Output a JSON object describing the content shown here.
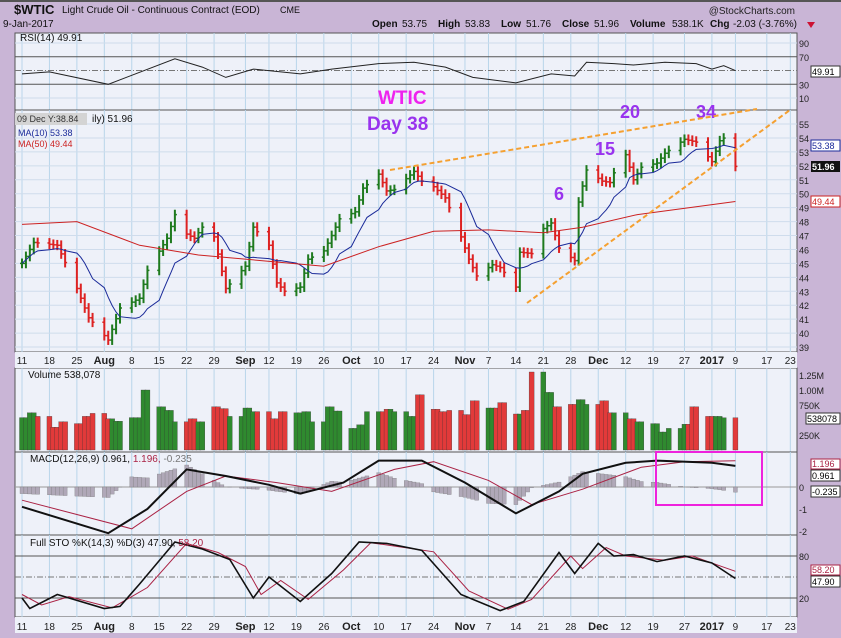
{
  "header": {
    "symbol": "$WTIC",
    "name": "Light Crude Oil - Continuous Contract (EOD)",
    "exchange": "CME",
    "date": "9-Jan-2017",
    "watermark": "@StockCharts.com",
    "open_label": "Open",
    "open": "53.75",
    "high_label": "High",
    "high": "53.83",
    "low_label": "Low",
    "low": "51.76",
    "close_label": "Close",
    "close": "51.96",
    "volume_label": "Volume",
    "volume": "538.1K",
    "chg_label": "Chg",
    "chg": "-2.03 (-3.76%)",
    "chg_icon": "down-triangle-icon"
  },
  "colors": {
    "up": "#1e7a1e",
    "down": "#dd2222",
    "ma10": "#1a2a99",
    "ma50": "#cc2222",
    "annot_magenta": "#ee22ee",
    "annot_purple": "#9933ee",
    "trendline": "#f5a030",
    "highlight_box": "#ee22dd"
  },
  "legends": {
    "rsi": "RSI(14) 49.91",
    "price_tooltip": "09 Dec Y:38.84",
    "price_suffix": "ily) 51.96",
    "ma10": "MA(10) 53.38",
    "ma50": "MA(50) 49.44",
    "volume": "Volume 538,078",
    "macd_a": "MACD(12,26,9) 0.961,",
    "macd_b": "1.196,",
    "macd_c": "-0.235",
    "sto_a": "Full STO %K(14,3) %D(3) 47.90,",
    "sto_b": "58.20"
  },
  "annotations": {
    "title": "WTIC",
    "day": "Day 38",
    "counts": [
      "6",
      "15",
      "20",
      "34"
    ]
  },
  "value_tags": {
    "rsi": "49.91",
    "ma10": "53.38",
    "close": "51.96",
    "ma50": "49.44",
    "volume": "538078",
    "macd": "1.196",
    "macd2": "0.961",
    "macd_hist": "-0.235",
    "sto_d": "58.20",
    "sto_k": "47.90"
  },
  "chart_data": {
    "type": "ohlc-bar with indicators",
    "x_ticks": [
      {
        "d": "2016-07-11",
        "t": "11"
      },
      {
        "d": "2016-07-18",
        "t": "18"
      },
      {
        "d": "2016-07-25",
        "t": "25"
      },
      {
        "d": "2016-08-01",
        "t": "Aug",
        "bold": true
      },
      {
        "d": "2016-08-08",
        "t": "8"
      },
      {
        "d": "2016-08-15",
        "t": "15"
      },
      {
        "d": "2016-08-22",
        "t": "22"
      },
      {
        "d": "2016-08-29",
        "t": "29"
      },
      {
        "d": "2016-09-06",
        "t": "Sep",
        "bold": true
      },
      {
        "d": "2016-09-12",
        "t": "12"
      },
      {
        "d": "2016-09-19",
        "t": "19"
      },
      {
        "d": "2016-09-26",
        "t": "26"
      },
      {
        "d": "2016-10-03",
        "t": "Oct",
        "bold": true
      },
      {
        "d": "2016-10-10",
        "t": "10"
      },
      {
        "d": "2016-10-17",
        "t": "17"
      },
      {
        "d": "2016-10-24",
        "t": "24"
      },
      {
        "d": "2016-11-01",
        "t": "Nov",
        "bold": true
      },
      {
        "d": "2016-11-07",
        "t": "7"
      },
      {
        "d": "2016-11-14",
        "t": "14"
      },
      {
        "d": "2016-11-21",
        "t": "21"
      },
      {
        "d": "2016-11-28",
        "t": "28"
      },
      {
        "d": "2016-12-05",
        "t": "Dec",
        "bold": true
      },
      {
        "d": "2016-12-12",
        "t": "12"
      },
      {
        "d": "2016-12-19",
        "t": "19"
      },
      {
        "d": "2016-12-27",
        "t": "27"
      },
      {
        "d": "2017-01-03",
        "t": "2017",
        "bold": true
      },
      {
        "d": "2017-01-09",
        "t": "9"
      },
      {
        "d": "2017-01-17",
        "t": "17"
      },
      {
        "d": "2017-01-23",
        "t": "23"
      }
    ],
    "price": {
      "ylim": [
        38.5,
        56.5
      ],
      "y_ticks": [
        39,
        40,
        41,
        42,
        43,
        44,
        45,
        46,
        47,
        48,
        49,
        50,
        51,
        52,
        53,
        54,
        55
      ],
      "closes": [
        [
          "2016-07-11",
          45.0
        ],
        [
          "2016-07-14",
          46.5
        ],
        [
          "2016-07-20",
          46.3
        ],
        [
          "2016-07-25",
          43.2
        ],
        [
          "2016-07-28",
          41.1
        ],
        [
          "2016-08-02",
          39.5
        ],
        [
          "2016-08-05",
          41.8
        ],
        [
          "2016-08-10",
          42.5
        ],
        [
          "2016-08-12",
          44.5
        ],
        [
          "2016-08-17",
          46.8
        ],
        [
          "2016-08-19",
          48.5
        ],
        [
          "2016-08-22",
          47.1
        ],
        [
          "2016-08-24",
          46.8
        ],
        [
          "2016-08-26",
          47.6
        ],
        [
          "2016-08-29",
          46.9
        ],
        [
          "2016-09-01",
          43.2
        ],
        [
          "2016-09-06",
          44.8
        ],
        [
          "2016-09-08",
          47.6
        ],
        [
          "2016-09-12",
          46.3
        ],
        [
          "2016-09-14",
          43.6
        ],
        [
          "2016-09-16",
          43.0
        ],
        [
          "2016-09-20",
          43.3
        ],
        [
          "2016-09-22",
          45.3
        ],
        [
          "2016-09-26",
          45.9
        ],
        [
          "2016-09-28",
          47.0
        ],
        [
          "2016-09-30",
          48.2
        ],
        [
          "2016-10-04",
          48.7
        ],
        [
          "2016-10-06",
          50.4
        ],
        [
          "2016-10-10",
          51.4
        ],
        [
          "2016-10-12",
          50.2
        ],
        [
          "2016-10-14",
          50.3
        ],
        [
          "2016-10-19",
          51.6
        ],
        [
          "2016-10-21",
          50.9
        ],
        [
          "2016-10-24",
          50.5
        ],
        [
          "2016-10-27",
          49.7
        ],
        [
          "2016-10-31",
          46.9
        ],
        [
          "2016-11-02",
          45.3
        ],
        [
          "2016-11-04",
          44.1
        ],
        [
          "2016-11-08",
          44.9
        ],
        [
          "2016-11-10",
          44.7
        ],
        [
          "2016-11-14",
          43.3
        ],
        [
          "2016-11-15",
          45.8
        ],
        [
          "2016-11-18",
          45.7
        ],
        [
          "2016-11-21",
          47.5
        ],
        [
          "2016-11-23",
          47.9
        ],
        [
          "2016-11-25",
          46.1
        ],
        [
          "2016-11-29",
          45.2
        ],
        [
          "2016-11-30",
          49.4
        ],
        [
          "2016-12-02",
          51.7
        ],
        [
          "2016-12-06",
          50.9
        ],
        [
          "2016-12-08",
          50.8
        ],
        [
          "2016-12-09",
          51.5
        ],
        [
          "2016-12-12",
          52.8
        ],
        [
          "2016-12-14",
          51.0
        ],
        [
          "2016-12-16",
          51.9
        ],
        [
          "2016-12-20",
          52.2
        ],
        [
          "2016-12-22",
          52.9
        ],
        [
          "2016-12-27",
          53.9
        ],
        [
          "2016-12-30",
          53.7
        ],
        [
          "2017-01-03",
          52.3
        ],
        [
          "2017-01-05",
          53.8
        ],
        [
          "2017-01-06",
          53.99
        ],
        [
          "2017-01-09",
          51.96
        ]
      ],
      "ma50": [
        [
          "2016-07-11",
          47.8
        ],
        [
          "2016-07-25",
          48.0
        ],
        [
          "2016-08-10",
          46.3
        ],
        [
          "2016-08-25",
          45.6
        ],
        [
          "2016-09-10",
          45.2
        ],
        [
          "2016-09-26",
          44.8
        ],
        [
          "2016-10-10",
          46.2
        ],
        [
          "2016-10-24",
          47.3
        ],
        [
          "2016-11-07",
          47.4
        ],
        [
          "2016-11-21",
          47.2
        ],
        [
          "2016-12-01",
          47.6
        ],
        [
          "2016-12-15",
          48.5
        ],
        [
          "2017-01-09",
          49.44
        ]
      ]
    },
    "rsi": {
      "ylim": [
        0,
        100
      ],
      "y_ticks": [
        90,
        70,
        30,
        10
      ],
      "values": [
        [
          "2016-07-11",
          45
        ],
        [
          "2016-07-18",
          48
        ],
        [
          "2016-08-02",
          30
        ],
        [
          "2016-08-19",
          67
        ],
        [
          "2016-08-26",
          55
        ],
        [
          "2016-09-01",
          40
        ],
        [
          "2016-09-08",
          52
        ],
        [
          "2016-09-20",
          45
        ],
        [
          "2016-09-28",
          52
        ],
        [
          "2016-10-10",
          60
        ],
        [
          "2016-10-19",
          62
        ],
        [
          "2016-10-27",
          55
        ],
        [
          "2016-11-03",
          40
        ],
        [
          "2016-11-14",
          32
        ],
        [
          "2016-11-23",
          45
        ],
        [
          "2016-11-29",
          42
        ],
        [
          "2016-12-02",
          62
        ],
        [
          "2016-12-09",
          60
        ],
        [
          "2016-12-14",
          58
        ],
        [
          "2016-12-22",
          62
        ],
        [
          "2016-12-30",
          60
        ],
        [
          "2017-01-03",
          52
        ],
        [
          "2017-01-06",
          57
        ],
        [
          "2017-01-09",
          49.91
        ]
      ]
    },
    "volume": {
      "y_ticks": [
        [
          "1.25M",
          1250000
        ],
        [
          "1.00M",
          1000000
        ],
        [
          "750K",
          750000
        ],
        [
          "250K",
          250000
        ]
      ],
      "values_k": [
        540,
        620,
        560,
        380,
        470,
        440,
        560,
        610,
        520,
        480,
        540,
        1000,
        720,
        660,
        470,
        520,
        470,
        720,
        690,
        560,
        700,
        640,
        520,
        640,
        620,
        640,
        470,
        720,
        650,
        360,
        420,
        640,
        680,
        640,
        560,
        920,
        680,
        640,
        660,
        590,
        820,
        700,
        790,
        600,
        660,
        1300,
        960,
        720,
        760,
        840,
        760,
        820,
        620,
        520,
        470,
        440,
        300,
        360,
        430,
        720,
        560,
        560,
        538
      ]
    },
    "macd": {
      "ylim": [
        -2.3,
        1.8
      ],
      "y_ticks": [
        0,
        -1,
        -2
      ],
      "macd": [
        [
          "2016-07-11",
          -0.9
        ],
        [
          "2016-08-02",
          -2.1
        ],
        [
          "2016-08-12",
          -1.0
        ],
        [
          "2016-08-22",
          0.8
        ],
        [
          "2016-09-01",
          0.5
        ],
        [
          "2016-09-12",
          0.1
        ],
        [
          "2016-09-20",
          -0.3
        ],
        [
          "2016-10-01",
          0.2
        ],
        [
          "2016-10-10",
          1.2
        ],
        [
          "2016-10-21",
          1.2
        ],
        [
          "2016-11-01",
          0.2
        ],
        [
          "2016-11-14",
          -1.2
        ],
        [
          "2016-11-25",
          -0.2
        ],
        [
          "2016-12-01",
          0.6
        ],
        [
          "2016-12-12",
          1.1
        ],
        [
          "2016-12-20",
          1.2
        ],
        [
          "2017-01-03",
          1.1
        ],
        [
          "2017-01-09",
          0.961
        ]
      ],
      "signal": [
        [
          "2016-07-11",
          -0.6
        ],
        [
          "2016-08-08",
          -1.9
        ],
        [
          "2016-08-22",
          -0.2
        ],
        [
          "2016-09-01",
          0.5
        ],
        [
          "2016-09-14",
          0.2
        ],
        [
          "2016-09-28",
          -0.2
        ],
        [
          "2016-10-14",
          0.8
        ],
        [
          "2016-10-24",
          1.15
        ],
        [
          "2016-11-07",
          0.3
        ],
        [
          "2016-11-18",
          -0.8
        ],
        [
          "2016-12-01",
          -0.1
        ],
        [
          "2016-12-16",
          0.9
        ],
        [
          "2016-12-27",
          1.15
        ],
        [
          "2017-01-09",
          1.196
        ]
      ]
    },
    "sto": {
      "ylim": [
        0,
        100
      ],
      "y_ticks": [
        80,
        20
      ],
      "k": [
        [
          "2016-07-11",
          20
        ],
        [
          "2016-07-13",
          5
        ],
        [
          "2016-07-20",
          25
        ],
        [
          "2016-08-01",
          5
        ],
        [
          "2016-08-05",
          8
        ],
        [
          "2016-08-10",
          40
        ],
        [
          "2016-08-19",
          100
        ],
        [
          "2016-08-26",
          90
        ],
        [
          "2016-09-02",
          75
        ],
        [
          "2016-09-08",
          20
        ],
        [
          "2016-09-12",
          50
        ],
        [
          "2016-09-20",
          15
        ],
        [
          "2016-09-28",
          55
        ],
        [
          "2016-10-05",
          100
        ],
        [
          "2016-10-12",
          98
        ],
        [
          "2016-10-21",
          88
        ],
        [
          "2016-10-31",
          25
        ],
        [
          "2016-11-10",
          2
        ],
        [
          "2016-11-16",
          15
        ],
        [
          "2016-11-25",
          85
        ],
        [
          "2016-11-29",
          55
        ],
        [
          "2016-12-05",
          98
        ],
        [
          "2016-12-09",
          80
        ],
        [
          "2016-12-14",
          82
        ],
        [
          "2016-12-20",
          72
        ],
        [
          "2016-12-27",
          80
        ],
        [
          "2017-01-03",
          70
        ],
        [
          "2017-01-09",
          47.9
        ]
      ],
      "d": [
        [
          "2016-07-11",
          25
        ],
        [
          "2016-07-16",
          10
        ],
        [
          "2016-07-23",
          22
        ],
        [
          "2016-08-03",
          6
        ],
        [
          "2016-08-12",
          35
        ],
        [
          "2016-08-22",
          98
        ],
        [
          "2016-08-30",
          85
        ],
        [
          "2016-09-06",
          65
        ],
        [
          "2016-09-10",
          25
        ],
        [
          "2016-09-15",
          45
        ],
        [
          "2016-09-22",
          18
        ],
        [
          "2016-10-01",
          60
        ],
        [
          "2016-10-08",
          99
        ],
        [
          "2016-10-24",
          86
        ],
        [
          "2016-11-02",
          30
        ],
        [
          "2016-11-12",
          4
        ],
        [
          "2016-11-18",
          18
        ],
        [
          "2016-11-28",
          80
        ],
        [
          "2016-12-01",
          62
        ],
        [
          "2016-12-07",
          92
        ],
        [
          "2016-12-12",
          80
        ],
        [
          "2016-12-22",
          74
        ],
        [
          "2016-12-29",
          80
        ],
        [
          "2017-01-05",
          66
        ],
        [
          "2017-01-09",
          58.2
        ]
      ]
    }
  }
}
